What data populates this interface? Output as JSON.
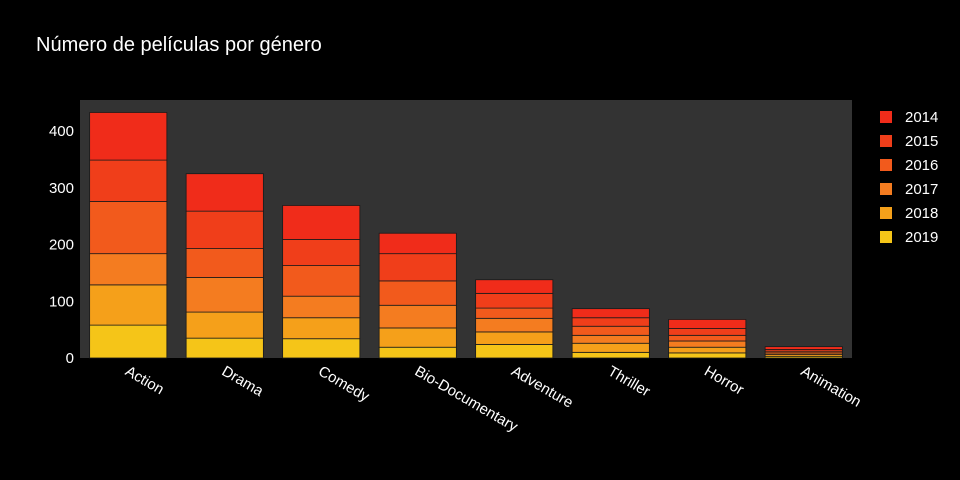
{
  "chart_data": {
    "type": "bar",
    "stacked": true,
    "title": "Número de películas por género",
    "xlabel": "",
    "ylabel": "",
    "ylim": [
      0,
      455
    ],
    "yticks": [
      0,
      100,
      200,
      300,
      400
    ],
    "categories": [
      "Action",
      "Drama",
      "Comedy",
      "Bio-Documentary",
      "Adventure",
      "Thriller",
      "Horror",
      "Animation"
    ],
    "series": [
      {
        "name": "2019",
        "color": "#f5c518",
        "values": [
          58,
          35,
          34,
          19,
          24,
          10,
          9,
          3
        ]
      },
      {
        "name": "2018",
        "color": "#f5a01a",
        "values": [
          71,
          46,
          37,
          34,
          22,
          16,
          10,
          3
        ]
      },
      {
        "name": "2017",
        "color": "#f47c20",
        "values": [
          55,
          61,
          38,
          40,
          24,
          14,
          11,
          3
        ]
      },
      {
        "name": "2016",
        "color": "#f25a1c",
        "values": [
          92,
          51,
          54,
          43,
          18,
          16,
          10,
          3
        ]
      },
      {
        "name": "2015",
        "color": "#f03e1a",
        "values": [
          73,
          66,
          46,
          48,
          26,
          15,
          12,
          3
        ]
      },
      {
        "name": "2014",
        "color": "#f02c1a",
        "values": [
          84,
          66,
          60,
          36,
          24,
          16,
          16,
          5
        ]
      }
    ],
    "legend": {
      "position": "right",
      "order": [
        "2014",
        "2015",
        "2016",
        "2017",
        "2018",
        "2019"
      ]
    },
    "grid": false,
    "plot_background": "#333333",
    "page_background": "#000000"
  }
}
